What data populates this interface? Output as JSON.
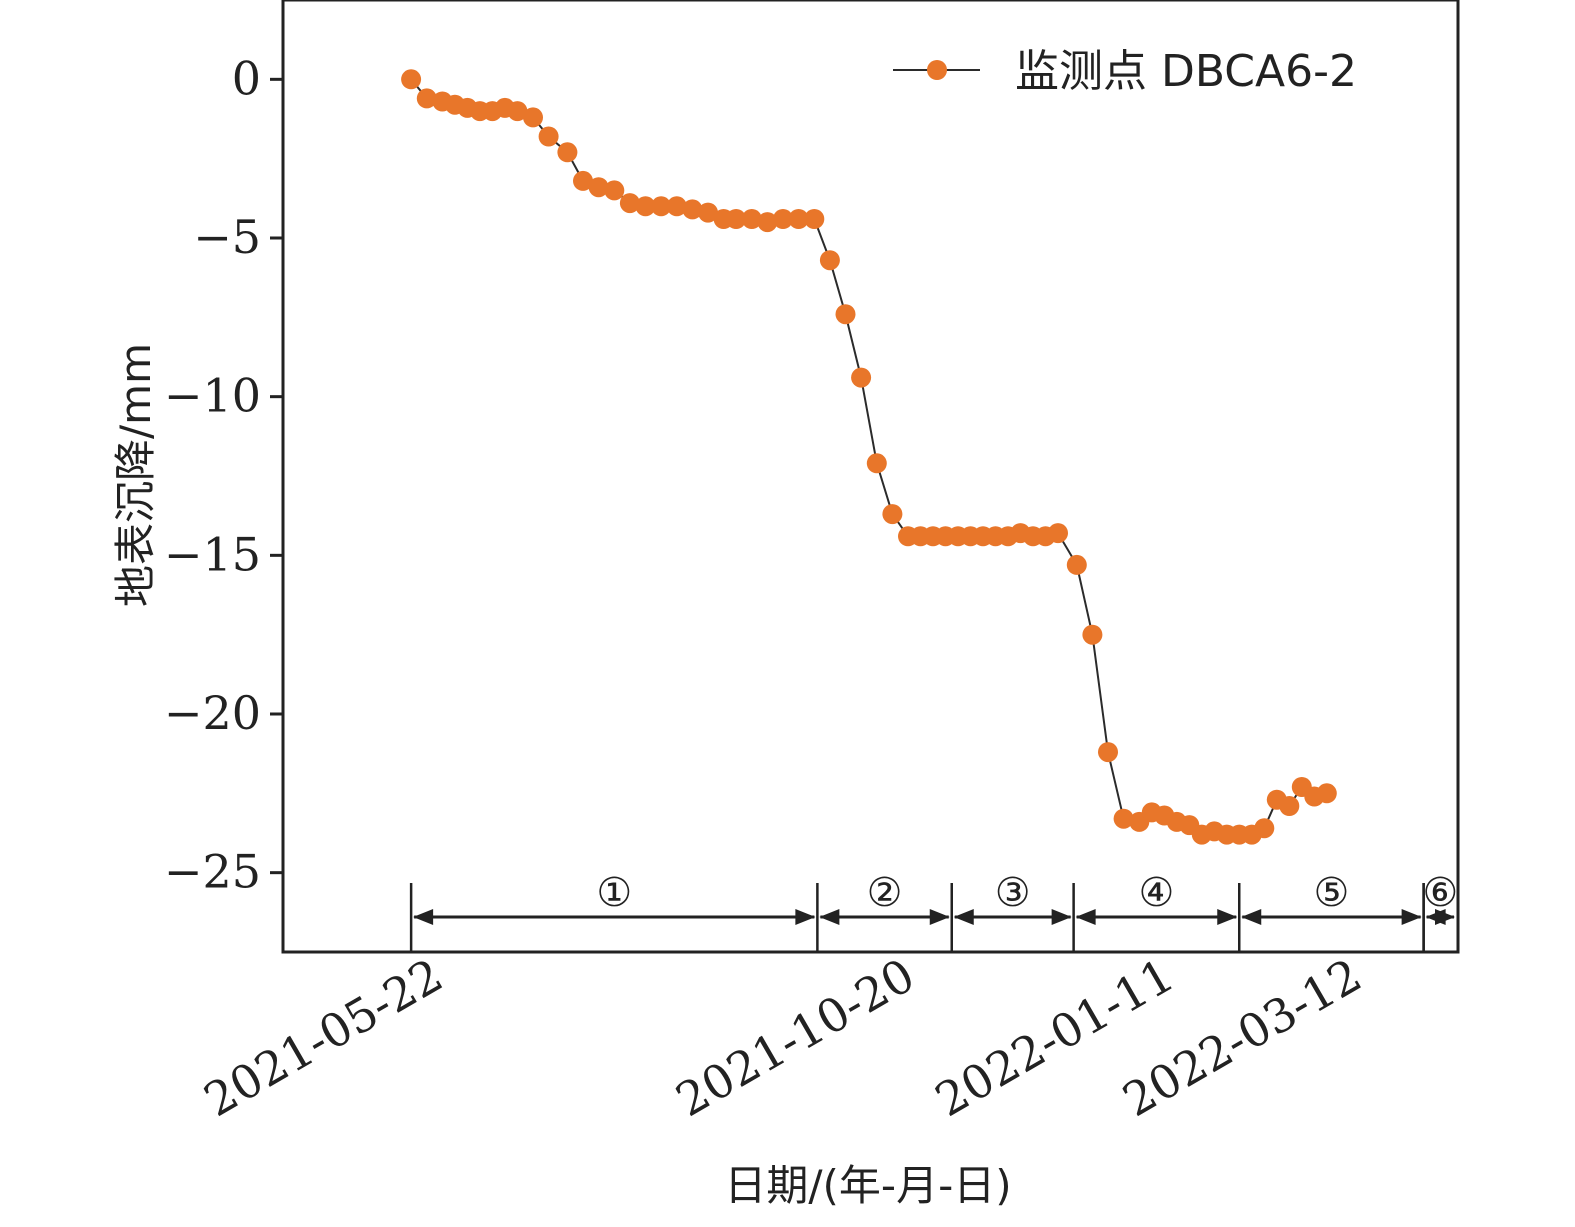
{
  "chart_data": {
    "type": "line",
    "xlabel": "日期/(年-月-日)",
    "ylabel": "地表沉降/mm",
    "ylim": [
      -27.5,
      2.5
    ],
    "xlim": [
      "2021-04-11",
      "2022-04-22"
    ],
    "yticks": [
      0,
      -5,
      -10,
      -15,
      -20,
      -25
    ],
    "xtick_labels": [
      "2021-05-22",
      "2021-10-20",
      "2022-01-11",
      "2022-03-12"
    ],
    "legend": {
      "position": "top-right"
    },
    "grid": false,
    "colors": {
      "marker": "#E8762A",
      "line": "#2b2b2b"
    },
    "series": [
      {
        "name": "监测点 DBCA6-2",
        "points": [
          [
            "2021-05-22",
            0.0
          ],
          [
            "2021-05-27",
            -0.6
          ],
          [
            "2021-06-01",
            -0.7
          ],
          [
            "2021-06-05",
            -0.8
          ],
          [
            "2021-06-09",
            -0.9
          ],
          [
            "2021-06-13",
            -1.0
          ],
          [
            "2021-06-17",
            -1.0
          ],
          [
            "2021-06-21",
            -0.9
          ],
          [
            "2021-06-25",
            -1.0
          ],
          [
            "2021-06-30",
            -1.2
          ],
          [
            "2021-07-05",
            -1.8
          ],
          [
            "2021-07-11",
            -2.3
          ],
          [
            "2021-07-16",
            -3.2
          ],
          [
            "2021-07-21",
            -3.4
          ],
          [
            "2021-07-26",
            -3.5
          ],
          [
            "2021-07-31",
            -3.9
          ],
          [
            "2021-08-05",
            -4.0
          ],
          [
            "2021-08-10",
            -4.0
          ],
          [
            "2021-08-15",
            -4.0
          ],
          [
            "2021-08-20",
            -4.1
          ],
          [
            "2021-08-25",
            -4.2
          ],
          [
            "2021-08-30",
            -4.4
          ],
          [
            "2021-09-03",
            -4.4
          ],
          [
            "2021-09-08",
            -4.4
          ],
          [
            "2021-09-13",
            -4.5
          ],
          [
            "2021-09-18",
            -4.4
          ],
          [
            "2021-09-23",
            -4.4
          ],
          [
            "2021-09-28",
            -4.4
          ],
          [
            "2021-10-03",
            -5.7
          ],
          [
            "2021-10-08",
            -7.4
          ],
          [
            "2021-10-13",
            -9.4
          ],
          [
            "2021-10-18",
            -12.1
          ],
          [
            "2021-10-23",
            -13.7
          ],
          [
            "2021-10-28",
            -14.4
          ],
          [
            "2021-11-01",
            -14.4
          ],
          [
            "2021-11-05",
            -14.4
          ],
          [
            "2021-11-09",
            -14.4
          ],
          [
            "2021-11-13",
            -14.4
          ],
          [
            "2021-11-17",
            -14.4
          ],
          [
            "2021-11-21",
            -14.4
          ],
          [
            "2021-11-25",
            -14.4
          ],
          [
            "2021-11-29",
            -14.4
          ],
          [
            "2021-12-03",
            -14.3
          ],
          [
            "2021-12-07",
            -14.4
          ],
          [
            "2021-12-11",
            -14.4
          ],
          [
            "2021-12-15",
            -14.3
          ],
          [
            "2021-12-21",
            -15.3
          ],
          [
            "2021-12-26",
            -17.5
          ],
          [
            "2021-12-31",
            -21.2
          ],
          [
            "2022-01-05",
            -23.3
          ],
          [
            "2022-01-10",
            -23.4
          ],
          [
            "2022-01-14",
            -23.1
          ],
          [
            "2022-01-18",
            -23.2
          ],
          [
            "2022-01-22",
            -23.4
          ],
          [
            "2022-01-26",
            -23.5
          ],
          [
            "2022-01-30",
            -23.8
          ],
          [
            "2022-02-03",
            -23.7
          ],
          [
            "2022-02-07",
            -23.8
          ],
          [
            "2022-02-11",
            -23.8
          ],
          [
            "2022-02-15",
            -23.8
          ],
          [
            "2022-02-19",
            -23.6
          ],
          [
            "2022-02-23",
            -22.7
          ],
          [
            "2022-02-27",
            -22.9
          ],
          [
            "2022-03-03",
            -22.3
          ],
          [
            "2022-03-07",
            -22.6
          ],
          [
            "2022-03-11",
            -22.5
          ]
        ]
      }
    ],
    "stages": [
      {
        "label": "①",
        "start": "2021-05-22",
        "end": "2021-09-29"
      },
      {
        "label": "②",
        "start": "2021-09-29",
        "end": "2021-11-11"
      },
      {
        "label": "③",
        "start": "2021-11-11",
        "end": "2021-12-20"
      },
      {
        "label": "④",
        "start": "2021-12-20",
        "end": "2022-02-11"
      },
      {
        "label": "⑤",
        "start": "2022-02-11",
        "end": "2022-04-11"
      },
      {
        "label": "⑥",
        "start": "2022-04-11",
        "end": "2022-04-22"
      }
    ]
  }
}
